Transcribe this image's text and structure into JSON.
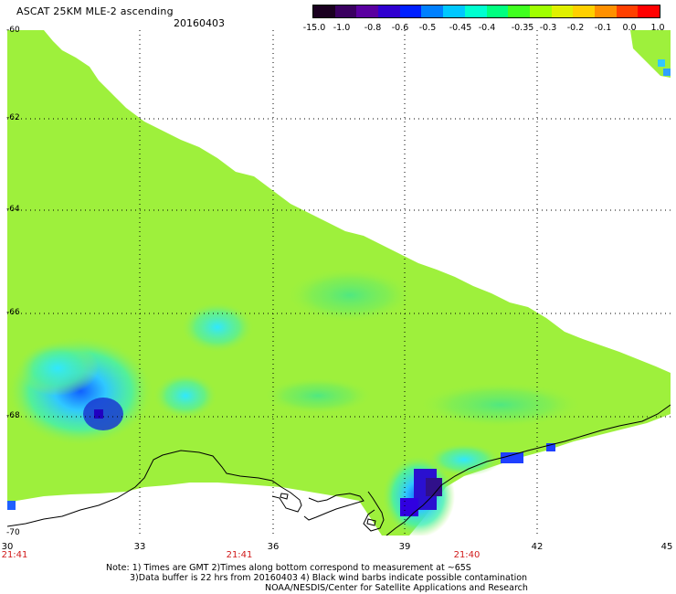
{
  "header": {
    "title": "ASCAT 25KM MLE-2 ascending",
    "date": "20160403"
  },
  "colorbar": {
    "labels": [
      "-15.0",
      "-1.0",
      "-0.8",
      "-0.6",
      "-0.5",
      "-0.45",
      "-0.4",
      "-0.35",
      "-0.3",
      "-0.2",
      "-0.1",
      "0.0",
      "1.0"
    ],
    "colors": [
      "#1a0020",
      "#3a0060",
      "#5a00a0",
      "#3000d0",
      "#0020ff",
      "#0080ff",
      "#00c8ff",
      "#00ffd0",
      "#00ff80",
      "#40ff20",
      "#a0ff00",
      "#e0f000",
      "#ffd000",
      "#ff9000",
      "#ff4000",
      "#ff0000"
    ]
  },
  "map": {
    "lat_labels": [
      "-60",
      "-62",
      "-64",
      "-66",
      "-68",
      "-70"
    ],
    "lon_labels": [
      "30",
      "33",
      "36",
      "39",
      "42",
      "45"
    ],
    "time_labels": [
      "21:41",
      "21:41",
      "21:40"
    ],
    "coastline_color": "#000000",
    "data_base_color": "#9ef03c",
    "time_label_color": "#d11a1a"
  },
  "notes": {
    "line1": "Note: 1) Times are GMT 2)Times along bottom correspond to measurement at ~65S",
    "line2": "3)Data buffer is 22 hrs from 20160403 4) Black wind barbs indicate possible contamination",
    "line3": "NOAA/NESDIS/Center for Satellite Applications and Research"
  }
}
